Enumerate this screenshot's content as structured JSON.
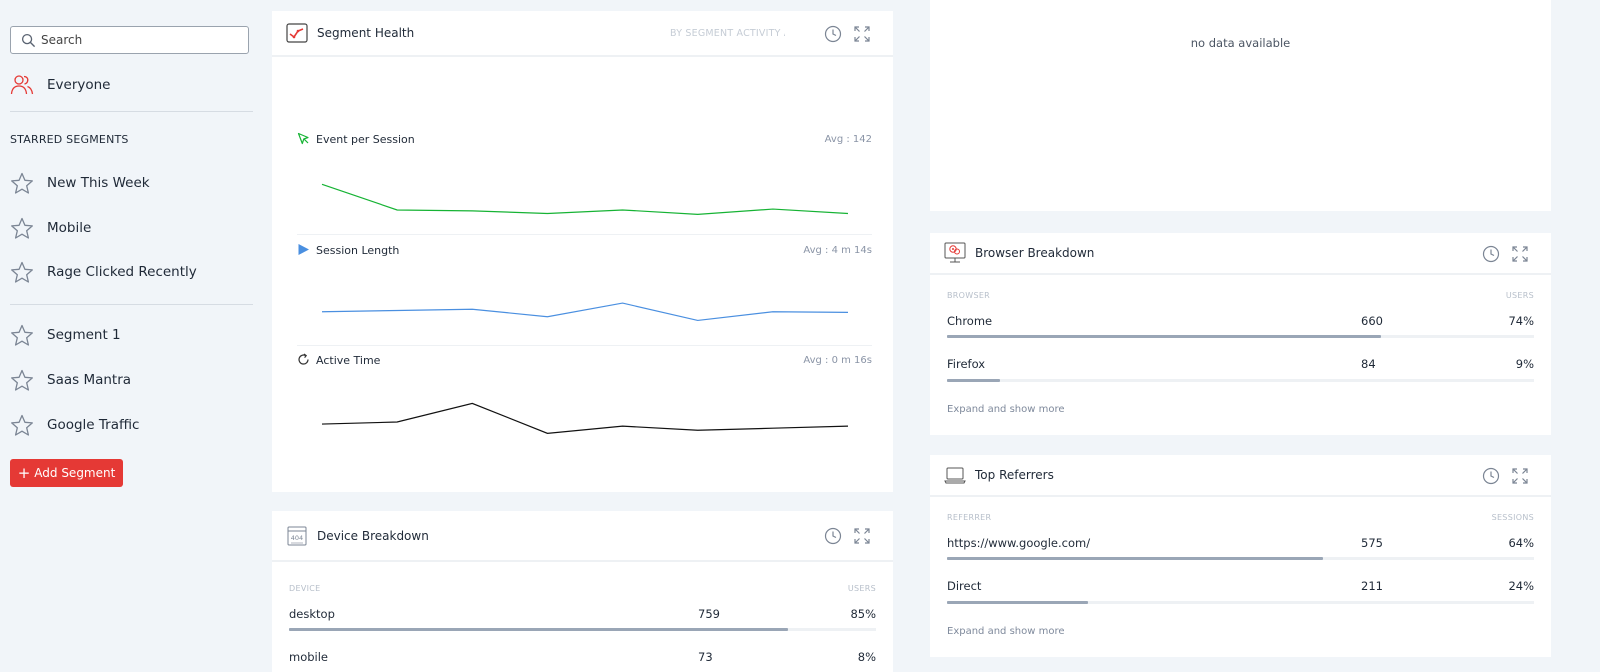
{
  "sidebar": {
    "search_placeholder": "Search",
    "everyone_label": "Everyone",
    "starred_title": "STARRED SEGMENTS",
    "starred": [
      "New This Week",
      "Mobile",
      "Rage Clicked Recently"
    ],
    "segments": [
      "Segment 1",
      "Saas Mantra",
      "Google Traffic"
    ],
    "add_button": "Add Segment"
  },
  "segment_health": {
    "title": "Segment Health",
    "sort_label": "BY SEGMENT ACTIVITY AC",
    "metrics": [
      {
        "label": "Event per Session",
        "avg": "Avg : 142"
      },
      {
        "label": "Session Length",
        "avg": "Avg : 4 m 14s"
      },
      {
        "label": "Active Time",
        "avg": "Avg : 0 m 16s"
      }
    ]
  },
  "chart_data": [
    {
      "type": "line",
      "title": "Event per Session",
      "series": [
        {
          "values": [
            10.5,
            7.6,
            7.5,
            7.2,
            7.6,
            7.1,
            7.7,
            7.2
          ]
        }
      ],
      "ylim": [
        5,
        12
      ],
      "color": "#16b334"
    },
    {
      "type": "line",
      "title": "Session Length",
      "series": [
        {
          "values": [
            4.6,
            4.7,
            4.8,
            4.2,
            5.3,
            3.9,
            4.6,
            4.55
          ]
        }
      ],
      "ylim": [
        2,
        7
      ],
      "color": "#4a8fe0"
    },
    {
      "type": "line",
      "title": "Active Time",
      "series": [
        {
          "values": [
            10.8,
            11.0,
            12.8,
            9.9,
            10.6,
            10.2,
            10.4,
            10.6
          ]
        }
      ],
      "ylim": [
        8,
        14
      ],
      "color": "#111111"
    }
  ],
  "device_breakdown": {
    "title": "Device Breakdown",
    "col_left": "DEVICE",
    "col_right": "USERS",
    "rows": [
      {
        "name": "desktop",
        "count": "759",
        "pct": "85%",
        "fraction": 0.85
      },
      {
        "name": "mobile",
        "count": "73",
        "pct": "8%",
        "fraction": 0.08
      }
    ]
  },
  "top_panel": {
    "no_data": "no data available"
  },
  "browser_breakdown": {
    "title": "Browser Breakdown",
    "col_left": "BROWSER",
    "col_right": "USERS",
    "rows": [
      {
        "name": "Chrome",
        "count": "660",
        "pct": "74%",
        "fraction": 0.74
      },
      {
        "name": "Firefox",
        "count": "84",
        "pct": "9%",
        "fraction": 0.09
      }
    ],
    "expand": "Expand and show more"
  },
  "top_referrers": {
    "title": "Top Referrers",
    "col_left": "REFERRER",
    "col_right": "SESSIONS",
    "rows": [
      {
        "name": "https://www.google.com/",
        "count": "575",
        "pct": "64%",
        "fraction": 0.64
      },
      {
        "name": "Direct",
        "count": "211",
        "pct": "24%",
        "fraction": 0.24
      }
    ],
    "expand": "Expand and show more"
  },
  "colors": {
    "accent_red": "#e53935",
    "green": "#16b334",
    "blue": "#4a8fe0",
    "bar": "#9aa6b6"
  },
  "icons": [
    "search-icon",
    "users-icon",
    "star-icon",
    "plus-icon",
    "clock-icon",
    "expand-icon",
    "trend-icon",
    "cursor-icon",
    "play-icon",
    "refresh-icon",
    "device-icon",
    "browser-icon",
    "laptop-icon"
  ]
}
